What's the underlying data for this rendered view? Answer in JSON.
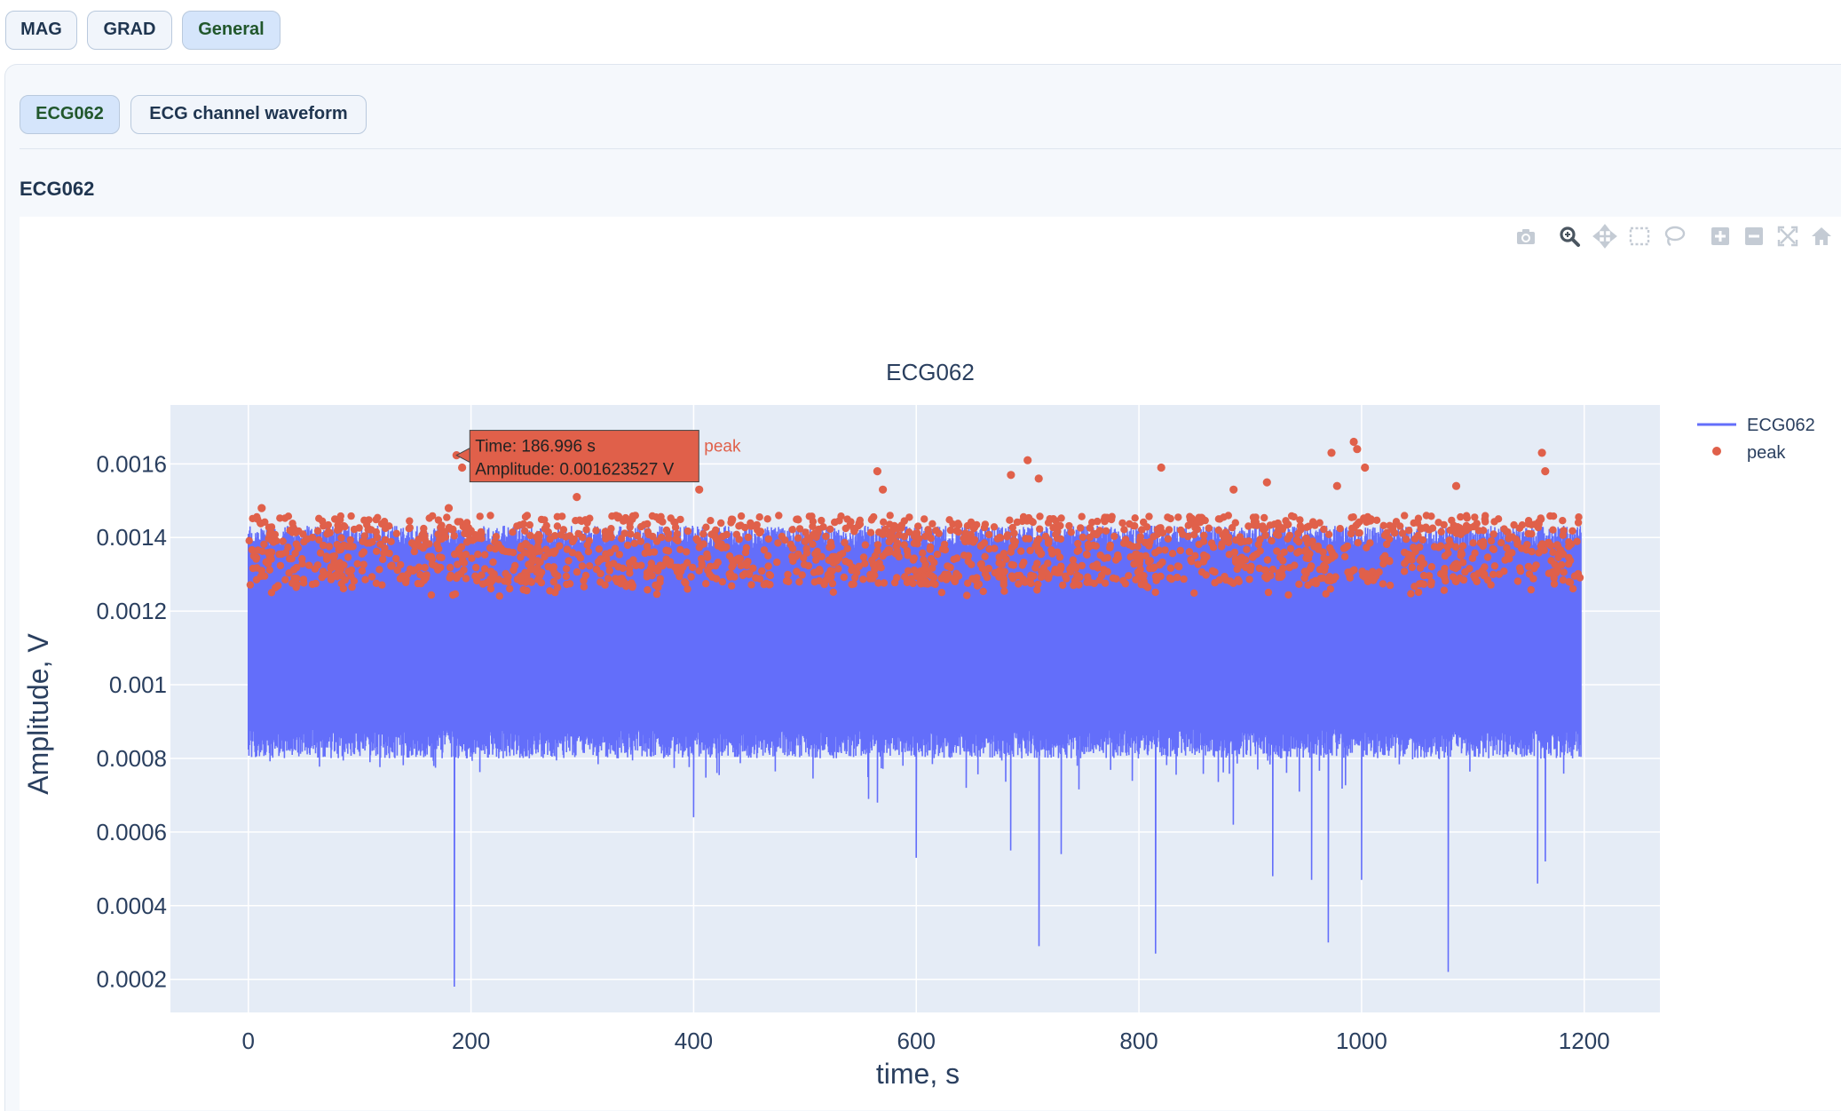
{
  "top_tabs": [
    {
      "label": "MAG",
      "active": false
    },
    {
      "label": "GRAD",
      "active": false
    },
    {
      "label": "General",
      "active": true
    }
  ],
  "sub_tabs": [
    {
      "label": "ECG062",
      "active": true
    },
    {
      "label": "ECG channel waveform",
      "active": false
    }
  ],
  "section_title": "ECG062",
  "modebar": [
    "camera-icon",
    "zoom-icon",
    "pan-icon",
    "box-select-icon",
    "lasso-select-icon",
    "zoom-in-icon",
    "zoom-out-icon",
    "autoscale-icon",
    "reset-axes-icon"
  ],
  "colors": {
    "line": "#636efa",
    "peak": "#e0604a",
    "plot_bg": "#e5ecf6",
    "grid": "#ffffff"
  },
  "tooltip": {
    "line1": "Time: 186.996 s",
    "line2": "Amplitude: 0.001623527 V",
    "series": "peak",
    "x": 186.996,
    "y": 0.001623527
  },
  "chart_data": {
    "type": "line",
    "title": "ECG062",
    "xlabel": "time, s",
    "ylabel": "Amplitude, V",
    "xlim": [
      -70,
      1268
    ],
    "ylim": [
      0.00011,
      0.00176
    ],
    "xticks": [
      0,
      200,
      400,
      600,
      800,
      1000,
      1200
    ],
    "xtick_labels": [
      "0",
      "200",
      "400",
      "600",
      "800",
      "1000",
      "1200"
    ],
    "yticks": [
      0.0002,
      0.0004,
      0.0006,
      0.0008,
      0.001,
      0.0012,
      0.0014,
      0.0016
    ],
    "ytick_labels": [
      "0.0002",
      "0.0004",
      "0.0006",
      "0.0008",
      "0.001",
      "0.0012",
      "0.0014",
      "0.0016"
    ],
    "grid": true,
    "legend_position": "top-right",
    "series": [
      {
        "name": "ECG062",
        "kind": "line",
        "color": "#636efa",
        "x_range": [
          0,
          1197
        ],
        "baseline_low": 0.00088,
        "baseline_high": 0.00139,
        "dips": [
          {
            "x": 185,
            "y": 0.00018
          },
          {
            "x": 400,
            "y": 0.00064
          },
          {
            "x": 557,
            "y": 0.00069
          },
          {
            "x": 565,
            "y": 0.00068
          },
          {
            "x": 600,
            "y": 0.00053
          },
          {
            "x": 645,
            "y": 0.00072
          },
          {
            "x": 685,
            "y": 0.00055
          },
          {
            "x": 710,
            "y": 0.00029
          },
          {
            "x": 730,
            "y": 0.00054
          },
          {
            "x": 815,
            "y": 0.00027
          },
          {
            "x": 885,
            "y": 0.00062
          },
          {
            "x": 920,
            "y": 0.00048
          },
          {
            "x": 955,
            "y": 0.00047
          },
          {
            "x": 970,
            "y": 0.0003
          },
          {
            "x": 1000,
            "y": 0.00047
          },
          {
            "x": 1078,
            "y": 0.00022
          },
          {
            "x": 1158,
            "y": 0.00046
          },
          {
            "x": 1165,
            "y": 0.00052
          }
        ]
      },
      {
        "name": "peak",
        "kind": "markers",
        "color": "#e0604a",
        "x_range": [
          0,
          1197
        ],
        "baseline_low": 0.00127,
        "baseline_high": 0.00146,
        "high_peaks": [
          {
            "x": 12,
            "y": 0.00148
          },
          {
            "x": 180,
            "y": 0.00148
          },
          {
            "x": 186.996,
            "y": 0.001623527
          },
          {
            "x": 192,
            "y": 0.00159
          },
          {
            "x": 295,
            "y": 0.00151
          },
          {
            "x": 405,
            "y": 0.00153
          },
          {
            "x": 565,
            "y": 0.00158
          },
          {
            "x": 570,
            "y": 0.00153
          },
          {
            "x": 685,
            "y": 0.00157
          },
          {
            "x": 700,
            "y": 0.00161
          },
          {
            "x": 710,
            "y": 0.00156
          },
          {
            "x": 820,
            "y": 0.00159
          },
          {
            "x": 885,
            "y": 0.00153
          },
          {
            "x": 915,
            "y": 0.00155
          },
          {
            "x": 973,
            "y": 0.00163
          },
          {
            "x": 978,
            "y": 0.00154
          },
          {
            "x": 993,
            "y": 0.00166
          },
          {
            "x": 996,
            "y": 0.00164
          },
          {
            "x": 1003,
            "y": 0.00159
          },
          {
            "x": 1085,
            "y": 0.00154
          },
          {
            "x": 1162,
            "y": 0.00163
          },
          {
            "x": 1165,
            "y": 0.00158
          }
        ]
      }
    ]
  }
}
